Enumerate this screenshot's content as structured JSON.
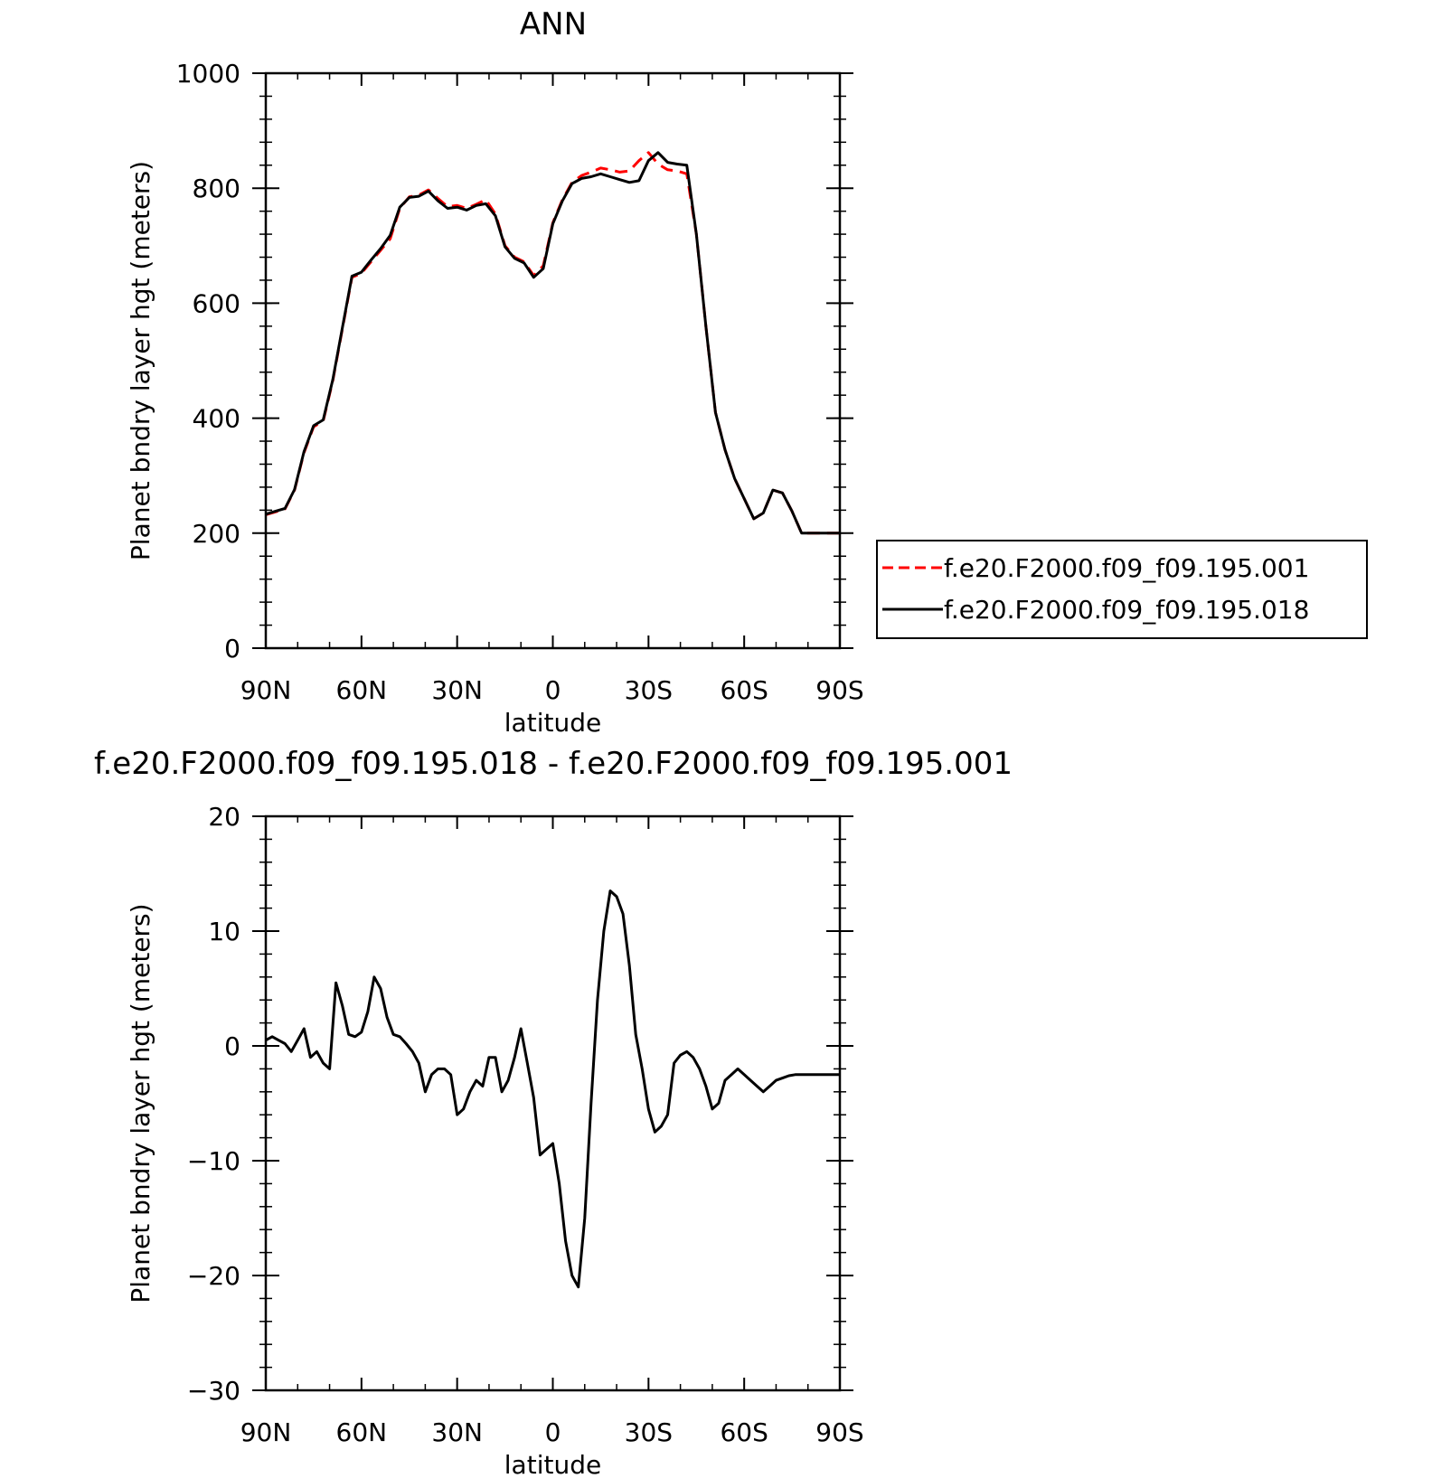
{
  "chart_data": [
    {
      "type": "line",
      "title": "ANN",
      "xlabel": "latitude",
      "ylabel": "Planet bndry layer hgt (meters)",
      "xlim": [
        90,
        -90
      ],
      "ylim": [
        0,
        1000
      ],
      "xticks": [
        90,
        60,
        30,
        0,
        -30,
        -60,
        -90
      ],
      "xtick_labels": [
        "90N",
        "60N",
        "30N",
        "0",
        "30S",
        "60S",
        "90S"
      ],
      "yticks": [
        0,
        200,
        400,
        600,
        800,
        1000
      ],
      "ytick_labels": [
        "0",
        "200",
        "400",
        "600",
        "800",
        "1000"
      ],
      "grid": false,
      "legend_position": "right",
      "series": [
        {
          "name": "f.e20.F2000.f09_f09.195.001",
          "color": "#ff0000",
          "dash": "dashed",
          "x": [
            90,
            87,
            84,
            81,
            78,
            75,
            72,
            69,
            66,
            63,
            60,
            57,
            54,
            51,
            48,
            45,
            42,
            39,
            36,
            33,
            30,
            27,
            24,
            21,
            18,
            15,
            12,
            9,
            6,
            3,
            0,
            -3,
            -6,
            -9,
            -12,
            -15,
            -18,
            -21,
            -24,
            -27,
            -30,
            -33,
            -36,
            -39,
            -42,
            -45,
            -48,
            -51,
            -54,
            -57,
            -60,
            -63,
            -66,
            -69,
            -72,
            -75,
            -78,
            -81,
            -84,
            -87,
            -90
          ],
          "y": [
            232,
            237,
            242,
            275,
            340,
            385,
            395,
            465,
            555,
            645,
            652,
            672,
            692,
            712,
            765,
            785,
            788,
            797,
            782,
            768,
            770,
            765,
            772,
            780,
            755,
            700,
            680,
            672,
            648,
            665,
            740,
            780,
            810,
            822,
            828,
            835,
            832,
            828,
            830,
            848,
            862,
            842,
            832,
            830,
            825,
            720,
            560,
            410,
            345,
            295,
            260,
            225,
            235,
            275,
            270,
            238,
            200,
            200,
            200,
            200,
            200
          ]
        },
        {
          "name": "f.e20.F2000.f09_f09.195.018",
          "color": "#000000",
          "dash": "solid",
          "x": [
            90,
            87,
            84,
            81,
            78,
            75,
            72,
            69,
            66,
            63,
            60,
            57,
            54,
            51,
            48,
            45,
            42,
            39,
            36,
            33,
            30,
            27,
            24,
            21,
            18,
            15,
            12,
            9,
            6,
            3,
            0,
            -3,
            -6,
            -9,
            -12,
            -15,
            -18,
            -21,
            -24,
            -27,
            -30,
            -33,
            -36,
            -39,
            -42,
            -45,
            -48,
            -51,
            -54,
            -57,
            -60,
            -63,
            -66,
            -69,
            -72,
            -75,
            -78,
            -81,
            -84,
            -87,
            -90
          ],
          "y": [
            233,
            238,
            243,
            276,
            342,
            387,
            397,
            467,
            557,
            647,
            654,
            675,
            695,
            718,
            767,
            784,
            786,
            795,
            778,
            765,
            767,
            762,
            770,
            773,
            752,
            698,
            678,
            670,
            645,
            660,
            738,
            778,
            808,
            817,
            820,
            825,
            820,
            815,
            810,
            813,
            848,
            862,
            845,
            842,
            840,
            720,
            560,
            410,
            345,
            295,
            260,
            225,
            235,
            275,
            270,
            238,
            200,
            200,
            200,
            200,
            200
          ]
        }
      ]
    },
    {
      "type": "line",
      "title": "f.e20.F2000.f09_f09.195.018 - f.e20.F2000.f09_f09.195.001",
      "xlabel": "latitude",
      "ylabel": "Planet bndry layer hgt (meters)",
      "xlim": [
        90,
        -90
      ],
      "ylim": [
        -30,
        20
      ],
      "xticks": [
        90,
        60,
        30,
        0,
        -30,
        -60,
        -90
      ],
      "xtick_labels": [
        "90N",
        "60N",
        "30N",
        "0",
        "30S",
        "60S",
        "90S"
      ],
      "yticks": [
        -30,
        -20,
        -10,
        0,
        10,
        20
      ],
      "ytick_labels": [
        "−30",
        "−20",
        "−10",
        "0",
        "10",
        "20"
      ],
      "grid": false,
      "series": [
        {
          "color": "#000000",
          "dash": "solid",
          "x": [
            90,
            88,
            86,
            84,
            82,
            80,
            78,
            76,
            74,
            72,
            70,
            68,
            66,
            64,
            62,
            60,
            58,
            56,
            54,
            52,
            50,
            48,
            46,
            44,
            42,
            40,
            38,
            36,
            34,
            32,
            30,
            28,
            26,
            24,
            22,
            20,
            18,
            16,
            14,
            12,
            10,
            8,
            6,
            4,
            2,
            0,
            -2,
            -4,
            -6,
            -8,
            -10,
            -12,
            -14,
            -16,
            -18,
            -20,
            -22,
            -24,
            -26,
            -28,
            -30,
            -32,
            -34,
            -36,
            -38,
            -40,
            -42,
            -44,
            -46,
            -48,
            -50,
            -52,
            -54,
            -56,
            -58,
            -60,
            -62,
            -64,
            -66,
            -68,
            -70,
            -72,
            -74,
            -76,
            -78,
            -80,
            -82,
            -84,
            -86,
            -88,
            -90
          ],
          "y": [
            0.5,
            0.8,
            0.5,
            0.2,
            -0.5,
            0.5,
            1.5,
            -1,
            -0.5,
            -1.5,
            -2,
            5.5,
            3.5,
            1,
            0.8,
            1.2,
            3,
            6,
            5,
            2.5,
            1,
            0.8,
            0.2,
            -0.5,
            -1.5,
            -4,
            -2.5,
            -2,
            -2,
            -2.5,
            -6,
            -5.5,
            -4,
            -3,
            -3.5,
            -1,
            -1,
            -4,
            -3,
            -1,
            1.5,
            -1.5,
            -4.5,
            -9.5,
            -9,
            -8.5,
            -12,
            -17,
            -20,
            -21,
            -15,
            -5,
            4,
            10,
            13.5,
            13,
            11.5,
            7,
            1,
            -2,
            -5.5,
            -7.5,
            -7,
            -6,
            -1.5,
            -0.8,
            -0.5,
            -1,
            -2,
            -3.5,
            -5.5,
            -5,
            -3,
            -2.5,
            -2,
            -2.5,
            -3,
            -3.5,
            -4,
            -3.5,
            -3,
            -2.8,
            -2.6,
            -2.5,
            -2.5,
            -2.5,
            -2.5,
            -2.5,
            -2.5,
            -2.5,
            -2.5
          ]
        }
      ]
    }
  ]
}
